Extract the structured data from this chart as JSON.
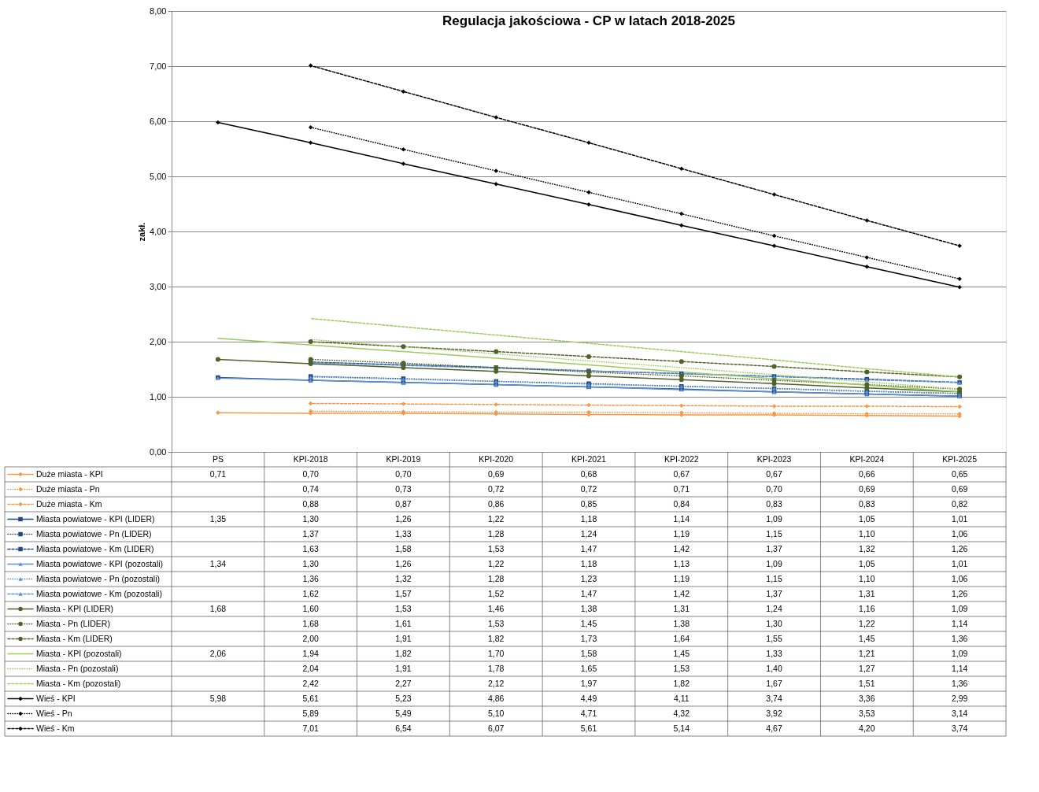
{
  "chart_data": {
    "type": "line",
    "title": "Regulacja jakościowa - CP w latach 2018-2025",
    "ylabel": "zakł.",
    "categories": [
      "PS",
      "KPI-2018",
      "KPI-2019",
      "KPI-2020",
      "KPI-2021",
      "KPI-2022",
      "KPI-2023",
      "KPI-2024",
      "KPI-2025"
    ],
    "ylim": [
      0,
      8
    ],
    "yticks": [
      {
        "value": 0,
        "label": "0,00"
      },
      {
        "value": 1,
        "label": "1,00"
      },
      {
        "value": 2,
        "label": "2,00"
      },
      {
        "value": 3,
        "label": "3,00"
      },
      {
        "value": 4,
        "label": "4,00"
      },
      {
        "value": 5,
        "label": "5,00"
      },
      {
        "value": 6,
        "label": "6,00"
      },
      {
        "value": 7,
        "label": "7,00"
      },
      {
        "value": 8,
        "label": "8,00"
      }
    ],
    "grid": "y",
    "legend": "bottom",
    "series": [
      {
        "name": "Duże miasta - KPI",
        "color": "#f79646",
        "marker": "diamond",
        "line_style": "solid",
        "values": [
          0.71,
          0.7,
          0.7,
          0.69,
          0.68,
          0.67,
          0.67,
          0.66,
          0.65
        ],
        "value_labels": [
          "0,71",
          "0,70",
          "0,70",
          "0,69",
          "0,68",
          "0,67",
          "0,67",
          "0,66",
          "0,65"
        ]
      },
      {
        "name": "Duże miasta - Pn",
        "color": "#f79646",
        "marker": "diamond",
        "line_style": "dotted",
        "values": [
          null,
          0.74,
          0.73,
          0.72,
          0.72,
          0.71,
          0.7,
          0.69,
          0.69
        ],
        "value_labels": [
          null,
          "0,74",
          "0,73",
          "0,72",
          "0,72",
          "0,71",
          "0,70",
          "0,69",
          "0,69"
        ]
      },
      {
        "name": "Duże miasta - Km",
        "color": "#f79646",
        "marker": "diamond",
        "line_style": "dashed",
        "values": [
          null,
          0.88,
          0.87,
          0.86,
          0.85,
          0.84,
          0.83,
          0.83,
          0.82
        ],
        "value_labels": [
          null,
          "0,88",
          "0,87",
          "0,86",
          "0,85",
          "0,84",
          "0,83",
          "0,83",
          "0,82"
        ]
      },
      {
        "name": "Miasta powiatowe - KPI (LIDER)",
        "color": "#1f497d",
        "marker": "square",
        "line_style": "solid",
        "values": [
          1.35,
          1.3,
          1.26,
          1.22,
          1.18,
          1.14,
          1.09,
          1.05,
          1.01
        ],
        "value_labels": [
          "1,35",
          "1,30",
          "1,26",
          "1,22",
          "1,18",
          "1,14",
          "1,09",
          "1,05",
          "1,01"
        ]
      },
      {
        "name": "Miasta powiatowe - Pn (LIDER)",
        "color": "#1f497d",
        "marker": "square",
        "line_style": "dotted",
        "values": [
          null,
          1.37,
          1.33,
          1.28,
          1.24,
          1.19,
          1.15,
          1.1,
          1.06
        ],
        "value_labels": [
          null,
          "1,37",
          "1,33",
          "1,28",
          "1,24",
          "1,19",
          "1,15",
          "1,10",
          "1,06"
        ]
      },
      {
        "name": "Miasta powiatowe - Km (LIDER)",
        "color": "#1f497d",
        "marker": "square",
        "line_style": "dashed",
        "values": [
          null,
          1.63,
          1.58,
          1.53,
          1.47,
          1.42,
          1.37,
          1.32,
          1.26
        ],
        "value_labels": [
          null,
          "1,63",
          "1,58",
          "1,53",
          "1,47",
          "1,42",
          "1,37",
          "1,32",
          "1,26"
        ]
      },
      {
        "name": "Miasta powiatowe - KPI (pozostali)",
        "color": "#5b8fd6",
        "marker": "triangle",
        "line_style": "solid",
        "values": [
          1.34,
          1.3,
          1.26,
          1.22,
          1.18,
          1.13,
          1.09,
          1.05,
          1.01
        ],
        "value_labels": [
          "1,34",
          "1,30",
          "1,26",
          "1,22",
          "1,18",
          "1,13",
          "1,09",
          "1,05",
          "1,01"
        ]
      },
      {
        "name": "Miasta powiatowe - Pn (pozostali)",
        "color": "#5b8fd6",
        "marker": "triangle",
        "line_style": "dotted",
        "values": [
          null,
          1.36,
          1.32,
          1.28,
          1.23,
          1.19,
          1.15,
          1.1,
          1.06
        ],
        "value_labels": [
          null,
          "1,36",
          "1,32",
          "1,28",
          "1,23",
          "1,19",
          "1,15",
          "1,10",
          "1,06"
        ]
      },
      {
        "name": "Miasta powiatowe - Km (pozostali)",
        "color": "#5b8fd6",
        "marker": "triangle",
        "line_style": "dashed",
        "values": [
          null,
          1.62,
          1.57,
          1.52,
          1.47,
          1.42,
          1.37,
          1.31,
          1.26
        ],
        "value_labels": [
          null,
          "1,62",
          "1,57",
          "1,52",
          "1,47",
          "1,42",
          "1,37",
          "1,31",
          "1,26"
        ]
      },
      {
        "name": "Miasta - KPI (LIDER)",
        "color": "#4f6228",
        "marker": "circle",
        "line_style": "solid",
        "values": [
          1.68,
          1.6,
          1.53,
          1.46,
          1.38,
          1.31,
          1.24,
          1.16,
          1.09
        ],
        "value_labels": [
          "1,68",
          "1,60",
          "1,53",
          "1,46",
          "1,38",
          "1,31",
          "1,24",
          "1,16",
          "1,09"
        ]
      },
      {
        "name": "Miasta - Pn (LIDER)",
        "color": "#4f6228",
        "marker": "circle",
        "line_style": "dotted",
        "values": [
          null,
          1.68,
          1.61,
          1.53,
          1.45,
          1.38,
          1.3,
          1.22,
          1.14
        ],
        "value_labels": [
          null,
          "1,68",
          "1,61",
          "1,53",
          "1,45",
          "1,38",
          "1,30",
          "1,22",
          "1,14"
        ]
      },
      {
        "name": "Miasta - Km (LIDER)",
        "color": "#4f6228",
        "marker": "circle",
        "line_style": "dashed",
        "values": [
          null,
          2.0,
          1.91,
          1.82,
          1.73,
          1.64,
          1.55,
          1.45,
          1.36
        ],
        "value_labels": [
          null,
          "2,00",
          "1,91",
          "1,82",
          "1,73",
          "1,64",
          "1,55",
          "1,45",
          "1,36"
        ]
      },
      {
        "name": "Miasta - KPI (pozostali)",
        "color": "#9bcb5b",
        "marker": "none",
        "line_style": "solid",
        "values": [
          2.06,
          1.94,
          1.82,
          1.7,
          1.58,
          1.45,
          1.33,
          1.21,
          1.09
        ],
        "value_labels": [
          "2,06",
          "1,94",
          "1,82",
          "1,70",
          "1,58",
          "1,45",
          "1,33",
          "1,21",
          "1,09"
        ]
      },
      {
        "name": "Miasta - Pn (pozostali)",
        "color": "#9bcb5b",
        "marker": "none",
        "line_style": "dotted",
        "values": [
          null,
          2.04,
          1.91,
          1.78,
          1.65,
          1.53,
          1.4,
          1.27,
          1.14
        ],
        "value_labels": [
          null,
          "2,04",
          "1,91",
          "1,78",
          "1,65",
          "1,53",
          "1,40",
          "1,27",
          "1,14"
        ]
      },
      {
        "name": "Miasta - Km (pozostali)",
        "color": "#9bcb5b",
        "marker": "none",
        "line_style": "dashed",
        "values": [
          null,
          2.42,
          2.27,
          2.12,
          1.97,
          1.82,
          1.67,
          1.51,
          1.36
        ],
        "value_labels": [
          null,
          "2,42",
          "2,27",
          "2,12",
          "1,97",
          "1,82",
          "1,67",
          "1,51",
          "1,36"
        ]
      },
      {
        "name": "Wieś - KPI",
        "color": "#000000",
        "marker": "diamond",
        "line_style": "solid",
        "values": [
          5.98,
          5.61,
          5.23,
          4.86,
          4.49,
          4.11,
          3.74,
          3.36,
          2.99
        ],
        "value_labels": [
          "5,98",
          "5,61",
          "5,23",
          "4,86",
          "4,49",
          "4,11",
          "3,74",
          "3,36",
          "2,99"
        ]
      },
      {
        "name": "Wieś - Pn",
        "color": "#000000",
        "marker": "diamond",
        "line_style": "dotted",
        "values": [
          null,
          5.89,
          5.49,
          5.1,
          4.71,
          4.32,
          3.92,
          3.53,
          3.14
        ],
        "value_labels": [
          null,
          "5,89",
          "5,49",
          "5,10",
          "4,71",
          "4,32",
          "3,92",
          "3,53",
          "3,14"
        ]
      },
      {
        "name": "Wieś - Km",
        "color": "#000000",
        "marker": "diamond",
        "line_style": "dashed",
        "values": [
          null,
          7.01,
          6.54,
          6.07,
          5.61,
          5.14,
          4.67,
          4.2,
          3.74
        ],
        "value_labels": [
          null,
          "7,01",
          "6,54",
          "6,07",
          "5,61",
          "5,14",
          "4,67",
          "4,20",
          "3,74"
        ]
      }
    ]
  }
}
